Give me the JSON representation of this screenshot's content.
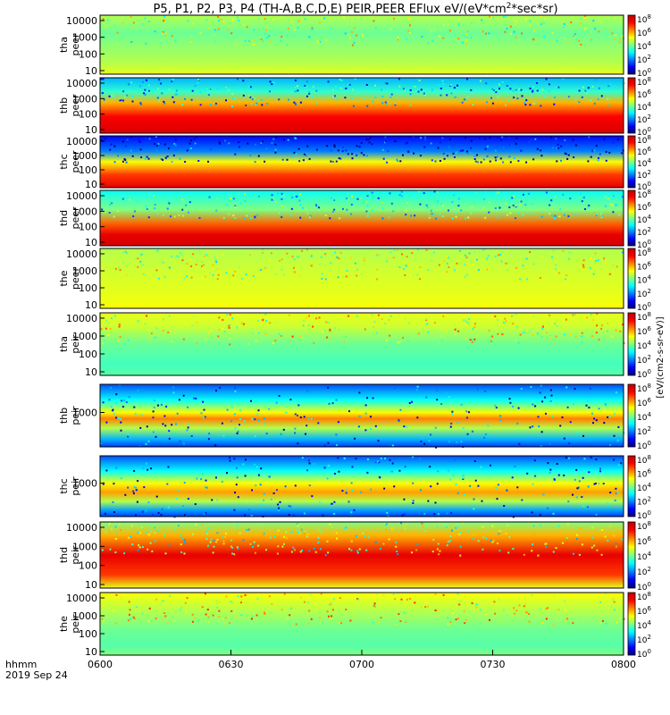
{
  "chart_data": {
    "type": "heatmap",
    "title": "P5, P1, P2, P3, P4 (TH-A,B,C,D,E) PEIR,PEER EFlux eV/(eV*cm",
    "title_sup": "2",
    "title_tail": "*sec*sr)",
    "x_corner_labels": [
      "hhmm",
      "2019 Sep 24"
    ],
    "x_ticks": [
      "0600",
      "0630",
      "0700",
      "0730",
      "0800"
    ],
    "xlim": [
      "0600",
      "0800"
    ],
    "colorbar_label": "[eV/(cm2-s-sr-eV)]",
    "colorbar_ticks": [
      "10",
      "10",
      "10",
      "10",
      "10"
    ],
    "colorbar_exponents": [
      "0",
      "2",
      "4",
      "6",
      "8"
    ],
    "panels": [
      {
        "probe": "tha",
        "species": "peer",
        "y_ticks": [
          "10",
          "100",
          "1000",
          "10000"
        ],
        "pattern": "tha_e"
      },
      {
        "probe": "thb",
        "species": "peer",
        "y_ticks": [
          "10",
          "100",
          "1000",
          "10000"
        ],
        "pattern": "thb_e"
      },
      {
        "probe": "thc",
        "species": "peer",
        "y_ticks": [
          "10",
          "100",
          "1000",
          "10000"
        ],
        "pattern": "thc_e"
      },
      {
        "probe": "thd",
        "species": "peer",
        "y_ticks": [
          "10",
          "100",
          "1000",
          "10000"
        ],
        "pattern": "thd_e"
      },
      {
        "probe": "the",
        "species": "peer",
        "y_ticks": [
          "10",
          "100",
          "1000",
          "10000"
        ],
        "pattern": "the_e"
      },
      {
        "probe": "tha",
        "species": "peir",
        "y_ticks": [
          "10",
          "100",
          "1000",
          "10000"
        ],
        "pattern": "tha_i"
      },
      {
        "probe": "thb",
        "species": "peir",
        "y_ticks": [
          "1000"
        ],
        "pattern": "thb_i"
      },
      {
        "probe": "thc",
        "species": "peir",
        "y_ticks": [
          "1000"
        ],
        "pattern": "thc_i"
      },
      {
        "probe": "thd",
        "species": "peir",
        "y_ticks": [
          "10",
          "100",
          "1000",
          "10000"
        ],
        "pattern": "thd_i"
      },
      {
        "probe": "the",
        "species": "peir",
        "y_ticks": [
          "10",
          "100",
          "1000",
          "10000"
        ],
        "pattern": "the_i"
      }
    ],
    "colorscale": [
      "#000080",
      "#0000ff",
      "#0080ff",
      "#00ffff",
      "#80ff80",
      "#ffff00",
      "#ff8000",
      "#ff0000",
      "#c00000"
    ]
  }
}
